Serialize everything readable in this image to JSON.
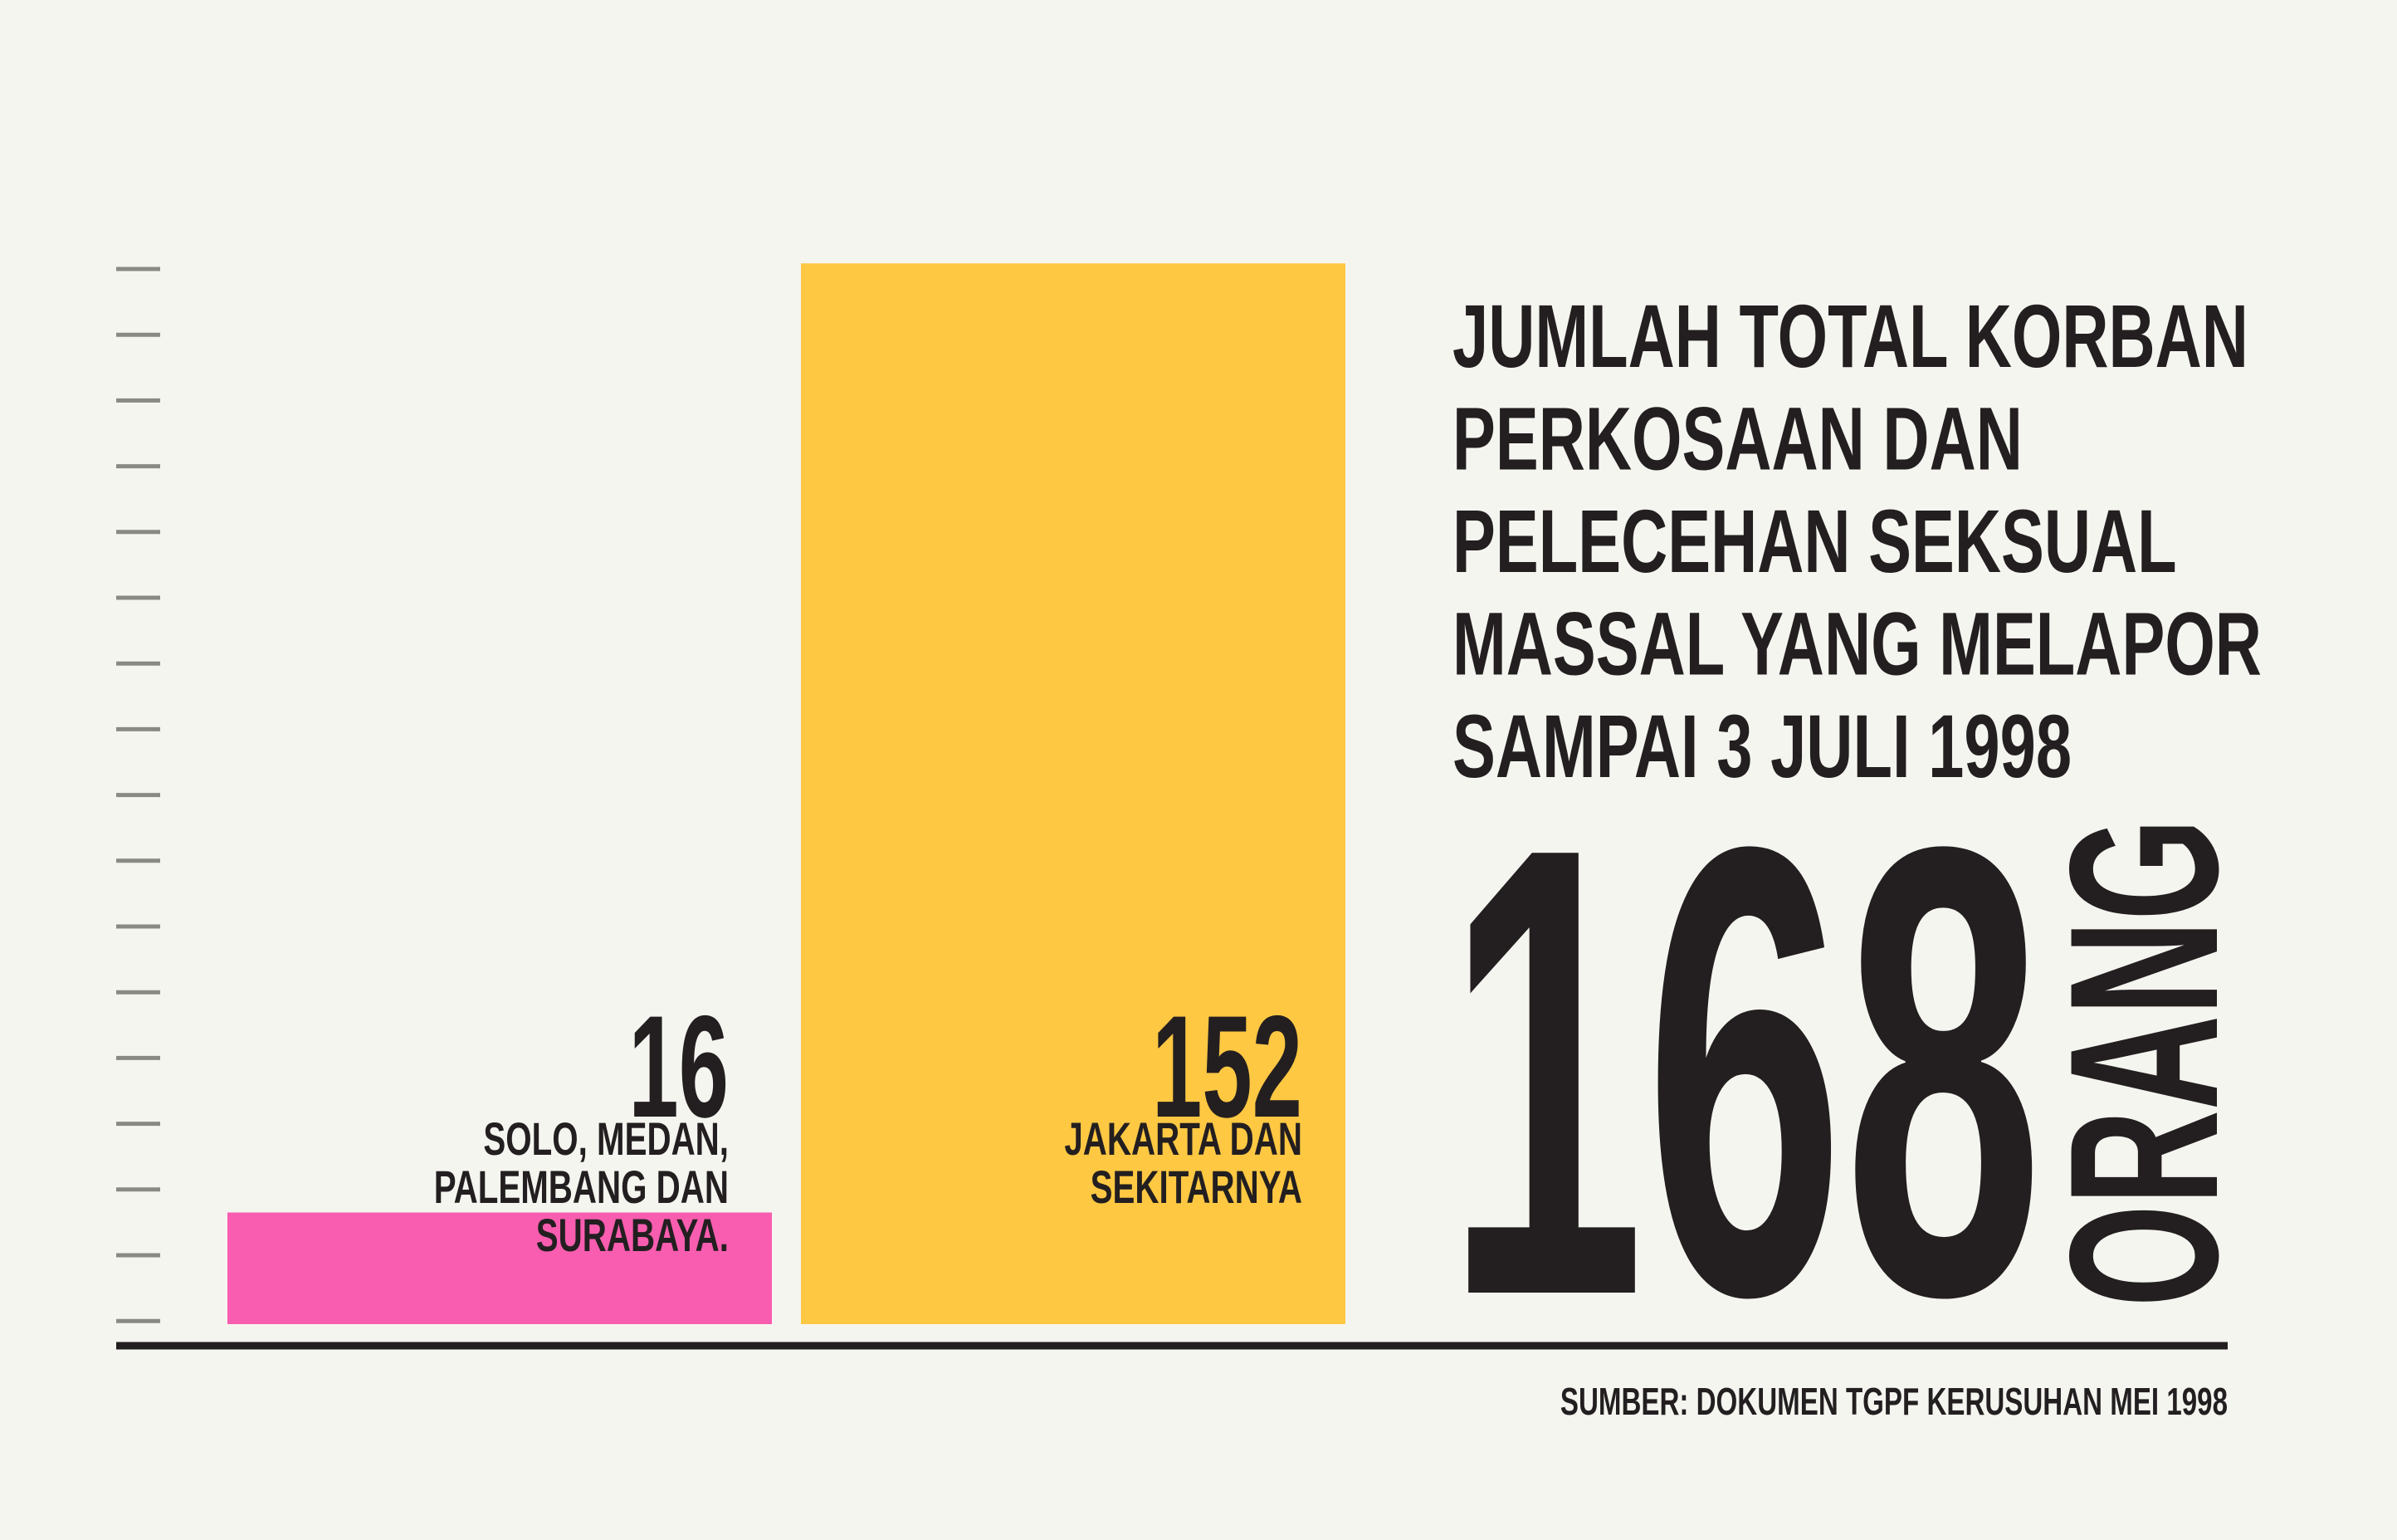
{
  "chart_data": {
    "type": "bar",
    "title_lines": [
      "JUMLAH TOTAL KORBAN",
      "PERKOSAAN DAN",
      "PELECEHAN SEKSUAL",
      "MASSAL YANG MELAPOR",
      "SAMPAI 3 JULI 1998"
    ],
    "categories": [
      "SOLO, MEDAN, PALEMBANG DAN SURABAYA.",
      "JAKARTA DAN SEKITARNYA"
    ],
    "series": [
      {
        "colors": [
          "#f95db0",
          "#ffc843"
        ],
        "values": [
          16,
          152
        ]
      }
    ],
    "ylim": [
      0,
      160
    ],
    "total": 168,
    "total_unit": "ORANG",
    "total_color": "#f95a5a",
    "source": "SUMBER: DOKUMEN TGPF KERUSUHAN MEI 1998"
  }
}
